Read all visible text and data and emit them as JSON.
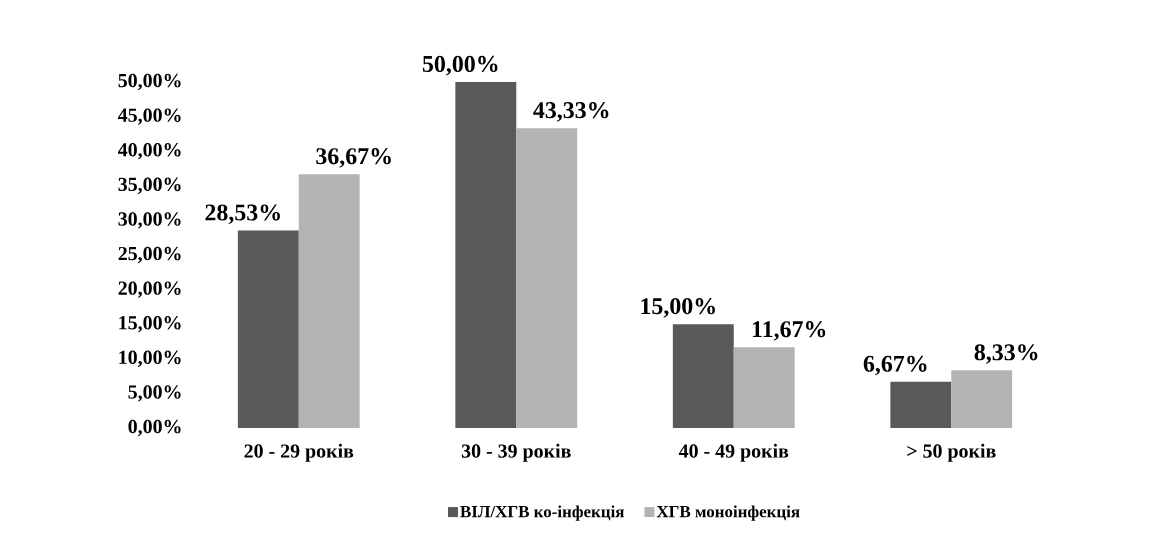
{
  "chart_data": {
    "type": "bar",
    "categories": [
      "20 - 29 років",
      "30 - 39 років",
      "40 - 49 років",
      "> 50 років"
    ],
    "series": [
      {
        "name": "ВІЛ/ХГВ ко-інфекція",
        "color": "#595959",
        "values": [
          28.53,
          50.0,
          15.0,
          6.67
        ],
        "value_labels": [
          "28,53%",
          "50,00%",
          "15,00%",
          "6,67%"
        ]
      },
      {
        "name": "ХГВ моноінфекція",
        "color": "#b3b3b3",
        "values": [
          36.67,
          43.33,
          11.67,
          8.33
        ],
        "value_labels": [
          "36,67%",
          "43,33%",
          "11,67%",
          "8,33%"
        ]
      }
    ],
    "ylim": [
      0,
      50
    ],
    "yticks": [
      {
        "value": 0,
        "label": "0,00%"
      },
      {
        "value": 5,
        "label": "5,00%"
      },
      {
        "value": 10,
        "label": "10,00%"
      },
      {
        "value": 15,
        "label": "15,00%"
      },
      {
        "value": 20,
        "label": "20,00%"
      },
      {
        "value": 25,
        "label": "25,00%"
      },
      {
        "value": 30,
        "label": "30,00%"
      },
      {
        "value": 35,
        "label": "35,00%"
      },
      {
        "value": 40,
        "label": "40,00%"
      },
      {
        "value": 45,
        "label": "45,00%"
      },
      {
        "value": 50,
        "label": "50,00%"
      }
    ],
    "legend": "bottom"
  }
}
